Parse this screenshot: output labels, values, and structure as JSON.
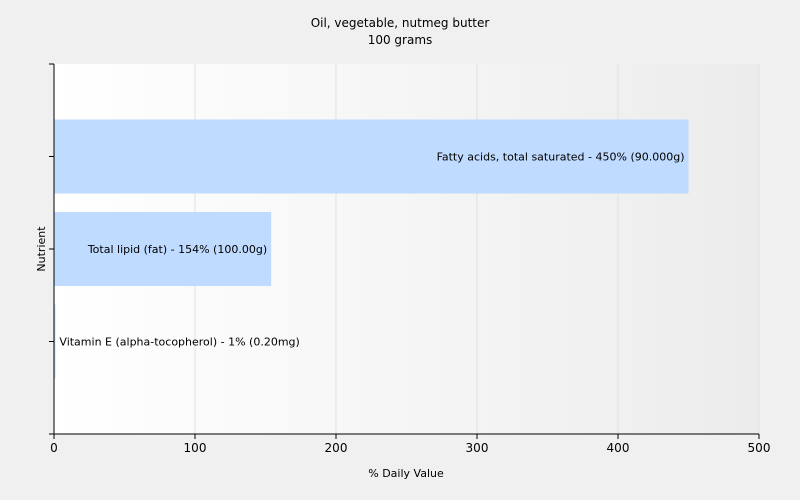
{
  "chart_data": {
    "type": "bar",
    "orientation": "horizontal",
    "title": "Oil, vegetable, nutmeg butter",
    "subtitle": "100 grams",
    "xlabel": "% Daily Value",
    "ylabel": "Nutrient",
    "xlim": [
      0,
      500
    ],
    "xticks": [
      0,
      100,
      200,
      300,
      400,
      500
    ],
    "grid": true,
    "bar_color": "#bfdbff",
    "categories": [
      "Fatty acids, total saturated",
      "Total lipid (fat)",
      "Vitamin E (alpha-tocopherol)"
    ],
    "values": [
      450,
      154,
      1
    ],
    "labels": [
      "Fatty acids, total saturated - 450% (90.000g)",
      "Total lipid (fat) - 154% (100.00g)",
      "Vitamin E (alpha-tocopherol) - 1% (0.20mg)"
    ]
  }
}
